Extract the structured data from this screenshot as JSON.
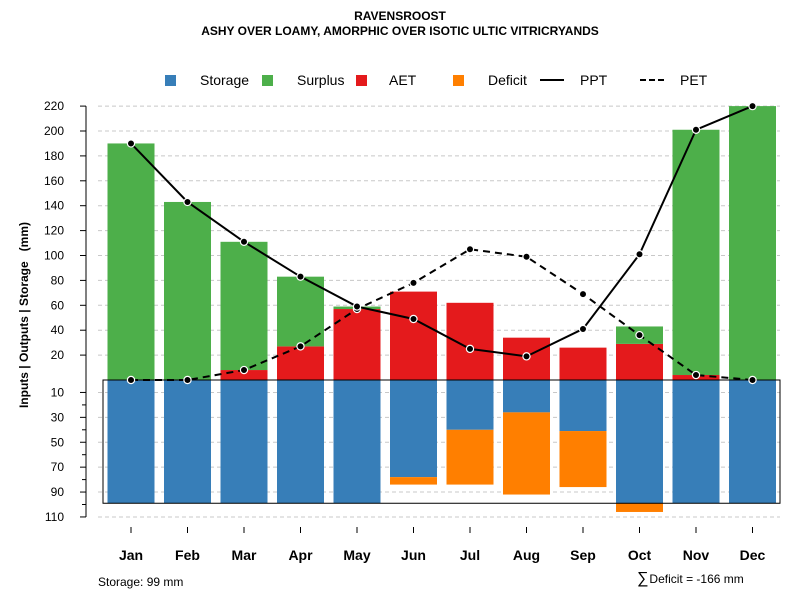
{
  "title": "RAVENSROOST",
  "subtitle": "ASHY OVER LOAMY, AMORPHIC OVER ISOTIC ULTIC VITRICRYANDS",
  "legend": {
    "storage": "Storage",
    "surplus": "Surplus",
    "aet": "AET",
    "deficit": "Deficit",
    "ppt": "PPT",
    "pet": "PET"
  },
  "ylabel_main": "Inputs | Outputs | Storage",
  "ylabel_unit": "(mm)",
  "storage_note": "Storage: 99 mm",
  "deficit_note": "Deficit = -166 mm",
  "colors": {
    "storage": "#377eb8",
    "surplus": "#4daf4a",
    "aet": "#e41a1c",
    "deficit": "#ff7f00",
    "lines": "#000000",
    "grid": "#c8c8c8"
  },
  "chart_data": {
    "type": "bar",
    "title": "RAVENSROOST",
    "categories": [
      "Jan",
      "Feb",
      "Mar",
      "Apr",
      "May",
      "Jun",
      "Jul",
      "Aug",
      "Sep",
      "Oct",
      "Nov",
      "Dec"
    ],
    "upper_axis_ticks": [
      20,
      40,
      60,
      80,
      100,
      120,
      140,
      160,
      180,
      200,
      220
    ],
    "lower_axis_ticks": [
      10,
      30,
      50,
      70,
      90,
      110
    ],
    "ylim_upper": [
      0,
      220
    ],
    "ylim_lower": [
      0,
      110
    ],
    "series": [
      {
        "name": "AET",
        "values": [
          0,
          0,
          8,
          27,
          57,
          71,
          62,
          34,
          26,
          29,
          4,
          0
        ]
      },
      {
        "name": "Surplus",
        "values": [
          190,
          143,
          103,
          56,
          2,
          0,
          0,
          0,
          0,
          14,
          197,
          220
        ]
      },
      {
        "name": "Storage",
        "values": [
          99,
          99,
          99,
          99,
          99,
          78,
          40,
          26,
          41,
          99,
          99,
          99
        ]
      },
      {
        "name": "Deficit",
        "values": [
          0,
          0,
          0,
          0,
          0,
          6,
          44,
          66,
          45,
          7,
          0,
          0
        ]
      },
      {
        "name": "PPT",
        "values": [
          190,
          143,
          111,
          83,
          59,
          49,
          25,
          19,
          41,
          101,
          201,
          220
        ]
      },
      {
        "name": "PET",
        "values": [
          0,
          0,
          8,
          27,
          57,
          78,
          105,
          99,
          69,
          36,
          4,
          0
        ]
      }
    ]
  }
}
